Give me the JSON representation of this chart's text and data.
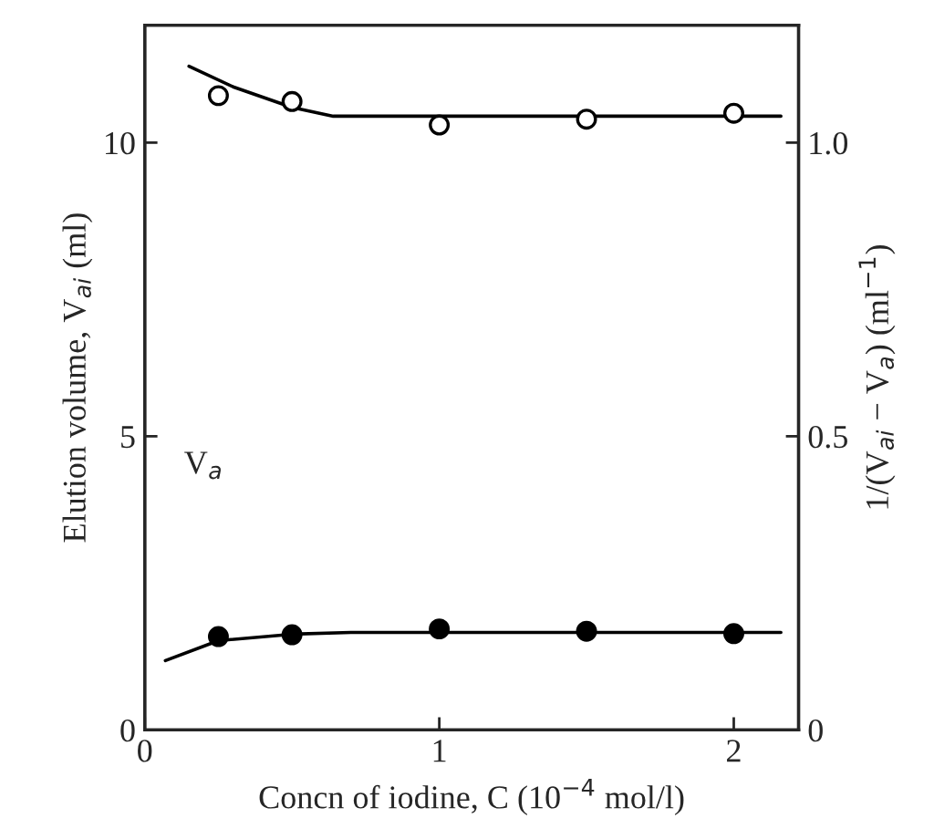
{
  "chart_data": {
    "type": "scatter",
    "xlabel": "Concn of iodine, C (10$^{−4}$ mol/l)",
    "ylabel": "Elution volume, V$_{ai}$ (ml)",
    "y2label": "1/(V$_{ai}$ − V$_{a}$) (ml$^{−1}$)",
    "xlim": [
      0,
      2.22
    ],
    "xticks": [
      0,
      1,
      2
    ],
    "ylim": [
      0,
      12
    ],
    "yticks": [
      0,
      5,
      10
    ],
    "y2lim": [
      0,
      1.2
    ],
    "y2ticks": [
      0,
      0.5,
      {
        "value": 1.0,
        "label": "1.0"
      }
    ],
    "grid": false,
    "legend": false,
    "series": [
      {
        "color": "#000000",
        "marker": "circle",
        "x": [
          0.25,
          0.5,
          1.0,
          1.5,
          2.0
        ],
        "values": [
          10.8,
          10.7,
          10.3,
          10.4,
          10.5
        ]
      },
      {
        "type": "line",
        "color": "#000000",
        "marker": "none",
        "x": [
          0.15,
          0.3,
          0.5,
          0.64,
          1.0,
          1.5,
          2.16
        ],
        "values": [
          11.3,
          10.95,
          10.6,
          10.45,
          10.45,
          10.45,
          10.45
        ]
      },
      {
        "axis": "y2",
        "color": "#000000",
        "marker": "circle",
        "x": [
          0.25,
          0.5,
          1.0,
          1.5,
          2.0
        ],
        "values": [
          0.159,
          0.162,
          0.172,
          0.168,
          0.164
        ]
      },
      {
        "type": "line",
        "axis": "y2",
        "color": "#000000",
        "marker": "none",
        "x": [
          0.07,
          0.25,
          0.5,
          0.7,
          1.0,
          1.5,
          2.16
        ],
        "values": [
          0.118,
          0.152,
          0.163,
          0.166,
          0.166,
          0.166,
          0.166
        ]
      }
    ],
    "annotations": [
      "V$_{a}$"
    ]
  }
}
